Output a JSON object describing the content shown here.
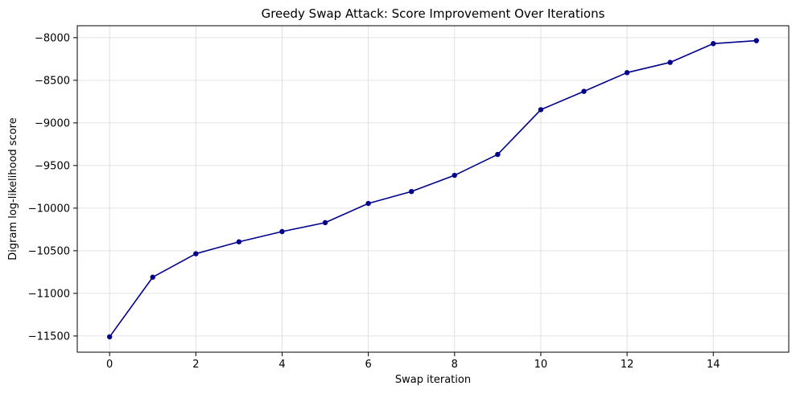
{
  "chart_data": {
    "type": "line",
    "title": "Greedy Swap Attack: Score Improvement Over Iterations",
    "xlabel": "Swap iteration",
    "ylabel": "Digram log-likelihood score",
    "x": [
      0,
      1,
      2,
      3,
      4,
      5,
      6,
      7,
      8,
      9,
      10,
      11,
      12,
      13,
      14,
      15
    ],
    "series": [
      {
        "values": [
          -11510,
          -10810,
          -10535,
          -10395,
          -10275,
          -10170,
          -9945,
          -9805,
          -9615,
          -9370,
          -8845,
          -8630,
          -8410,
          -8290,
          -8070,
          -8035
        ],
        "color": "#00008b"
      }
    ],
    "xlim": [
      -0.75,
      15.75
    ],
    "ylim": [
      -11690,
      -7860
    ],
    "xticks": [
      0,
      2,
      4,
      6,
      8,
      10,
      12,
      14
    ],
    "yticks": [
      -11500,
      -11000,
      -10500,
      -10000,
      -9500,
      -9000,
      -8500,
      -8000
    ],
    "xtick_labels": [
      "0",
      "2",
      "4",
      "6",
      "8",
      "10",
      "12",
      "14"
    ],
    "ytick_labels": [
      "−11500",
      "−11000",
      "−10500",
      "−10000",
      "−9500",
      "−9000",
      "−8500",
      "−8000"
    ],
    "grid": true,
    "marker": "circle"
  }
}
